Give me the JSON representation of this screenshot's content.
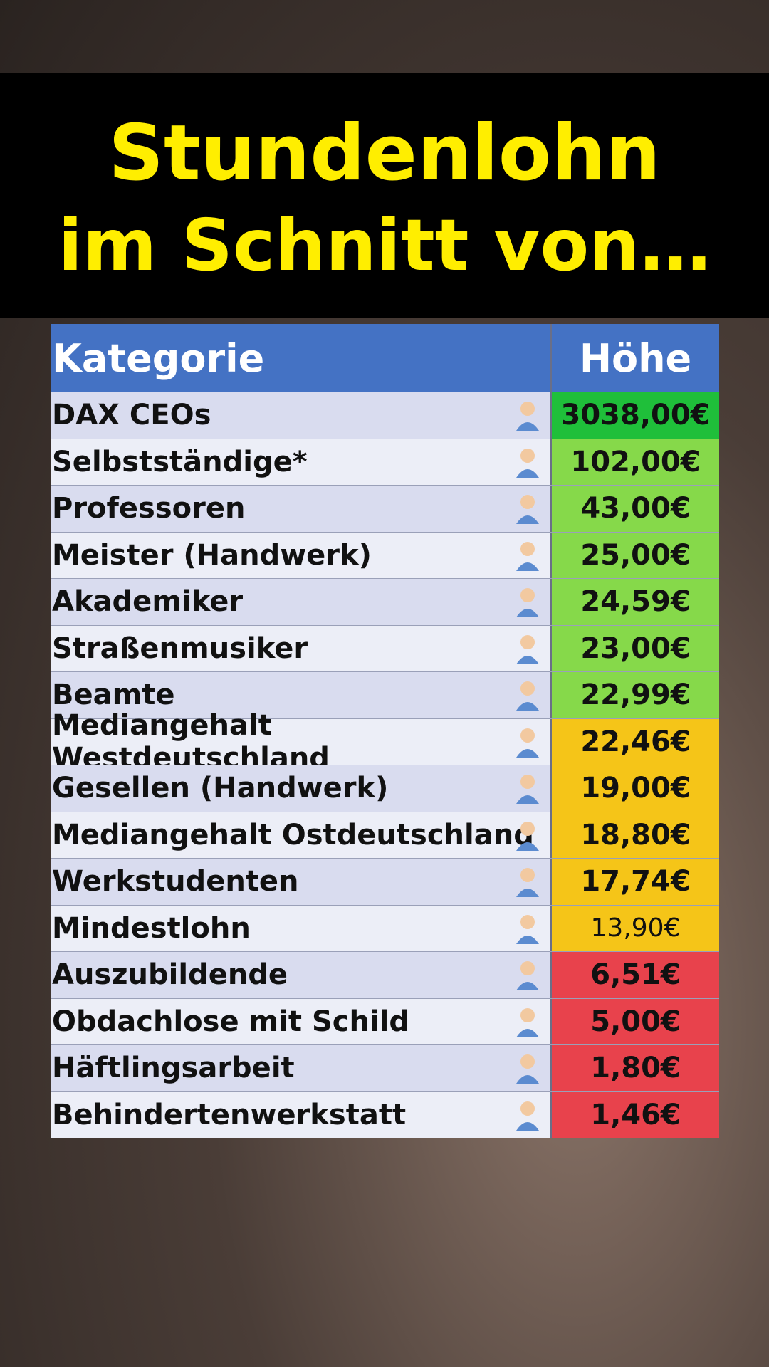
{
  "header": {
    "title_line1": "Stundenlohn",
    "title_line2": "im Schnitt von…"
  },
  "table": {
    "columns": [
      "Kategorie",
      "Höhe"
    ],
    "rows": [
      [
        "DAX CEOs",
        "3038,00€"
      ],
      [
        "Selbstständige*",
        "102,00€"
      ],
      [
        "Professoren",
        "43,00€"
      ],
      [
        "Meister (Handwerk)",
        "25,00€"
      ],
      [
        "Akademiker",
        "24,59€"
      ],
      [
        "Straßenmusiker",
        "23,00€"
      ],
      [
        "Beamte",
        "22,99€"
      ],
      [
        "Mediangehalt Westdeutschland",
        "22,46€"
      ],
      [
        "Gesellen (Handwerk)",
        "19,00€"
      ],
      [
        "Mediangehalt Ostdeutschland",
        "18,80€"
      ],
      [
        "Werkstudenten",
        "17,74€"
      ],
      [
        "Mindestlohn",
        "13,90€"
      ],
      [
        "Auszubildende",
        "6,51€"
      ],
      [
        "Obdachlose mit Schild",
        "5,00€"
      ],
      [
        "Häftlingsarbeit",
        "1,80€"
      ],
      [
        "Behindertenwerkstatt",
        "1,46€"
      ]
    ],
    "row_colors": [
      "#1fbf3a",
      "#86d94a",
      "#86d94a",
      "#86d94a",
      "#86d94a",
      "#86d94a",
      "#86d94a",
      "#f5c518",
      "#f5c518",
      "#f5c518",
      "#f5c518",
      "#f5c518",
      "#e8424c",
      "#e8424c",
      "#e8424c",
      "#e8424c"
    ]
  }
}
